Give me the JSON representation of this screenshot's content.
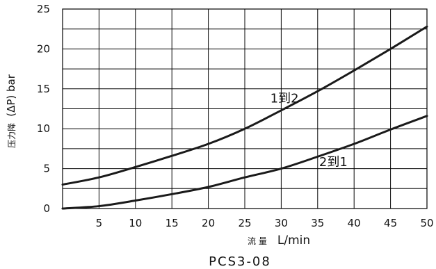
{
  "chart_data": {
    "type": "line",
    "title": "",
    "caption": "PCS3-08",
    "xlabel_prefix": "流 量",
    "xlabel_unit": "L/min",
    "ylabel_prefix": "压力降",
    "ylabel_unit": "(ΔP) bar",
    "xlim": [
      0,
      50
    ],
    "ylim": [
      0,
      25
    ],
    "x_ticks": [
      5,
      10,
      15,
      20,
      25,
      30,
      35,
      40,
      45,
      50
    ],
    "y_ticks": [
      0,
      5,
      10,
      15,
      20,
      25
    ],
    "x_gridlines": [
      0,
      5,
      10,
      15,
      20,
      25,
      30,
      35,
      40,
      45,
      50
    ],
    "y_gridlines": [
      0,
      2.5,
      5,
      7.5,
      10,
      12.5,
      15,
      17.5,
      20,
      22.5,
      25
    ],
    "grid": true,
    "series": [
      {
        "name": "1到2",
        "x": [
          0,
          5,
          10,
          15,
          20,
          25,
          30,
          35,
          40,
          45,
          50
        ],
        "values": [
          3.0,
          3.9,
          5.2,
          6.6,
          8.1,
          10.0,
          12.3,
          14.7,
          17.3,
          20.0,
          22.8
        ]
      },
      {
        "name": "2到1",
        "x": [
          0,
          5,
          10,
          15,
          20,
          25,
          30,
          35,
          40,
          45,
          50
        ],
        "values": [
          0.0,
          0.3,
          1.0,
          1.8,
          2.7,
          3.9,
          5.0,
          6.5,
          8.1,
          9.9,
          11.6
        ]
      }
    ]
  }
}
